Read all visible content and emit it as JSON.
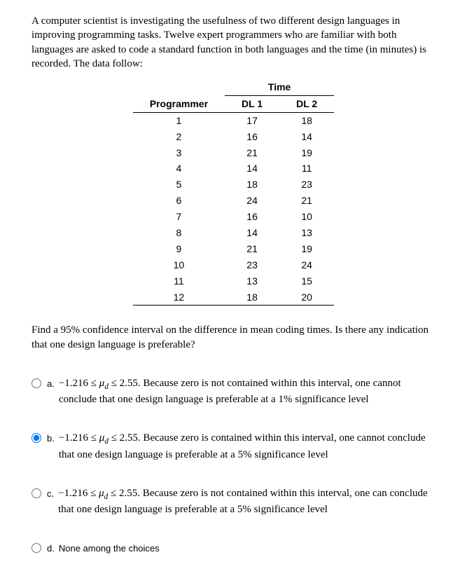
{
  "problem": "A computer scientist is investigating the usefulness of two different design languages in improving programming tasks. Twelve expert programmers who are familiar with both languages are asked to code a standard function in both languages and the time (in minutes) is recorded. The data follow:",
  "table": {
    "time_header": "Time",
    "cols": {
      "prog": "Programmer",
      "dl1": "DL 1",
      "dl2": "DL 2"
    },
    "rows": [
      {
        "p": "1",
        "d1": "17",
        "d2": "18"
      },
      {
        "p": "2",
        "d1": "16",
        "d2": "14"
      },
      {
        "p": "3",
        "d1": "21",
        "d2": "19"
      },
      {
        "p": "4",
        "d1": "14",
        "d2": "11"
      },
      {
        "p": "5",
        "d1": "18",
        "d2": "23"
      },
      {
        "p": "6",
        "d1": "24",
        "d2": "21"
      },
      {
        "p": "7",
        "d1": "16",
        "d2": "10"
      },
      {
        "p": "8",
        "d1": "14",
        "d2": "13"
      },
      {
        "p": "9",
        "d1": "21",
        "d2": "19"
      },
      {
        "p": "10",
        "d1": "23",
        "d2": "24"
      },
      {
        "p": "11",
        "d1": "13",
        "d2": "15"
      },
      {
        "p": "12",
        "d1": "18",
        "d2": "20"
      }
    ]
  },
  "question": "Find a 95% confidence interval on the difference in mean coding times. Is there any indication that one design language is preferable?",
  "options": {
    "a": {
      "label": "a.",
      "lead": "−1.216 ≤ ",
      "tail": " ≤ 2.55. Because zero is not contained within this interval, one cannot conclude that one design language is preferable at a 1% significance level"
    },
    "b": {
      "label": "b.",
      "lead": "−1.216 ≤ ",
      "tail": " ≤ 2.55. Because zero is contained within this interval, one cannot conclude that one design language is preferable at a 5% significance level"
    },
    "c": {
      "label": "c.",
      "lead": "−1.216 ≤ ",
      "tail": " ≤ 2.55. Because zero is not contained within this interval, one can conclude that one design language is preferable at a 5% significance level"
    },
    "d": {
      "label": "d.",
      "text": "None among the choices"
    }
  },
  "mu_symbol": "μ",
  "sub_symbol": "d",
  "selected": "b"
}
